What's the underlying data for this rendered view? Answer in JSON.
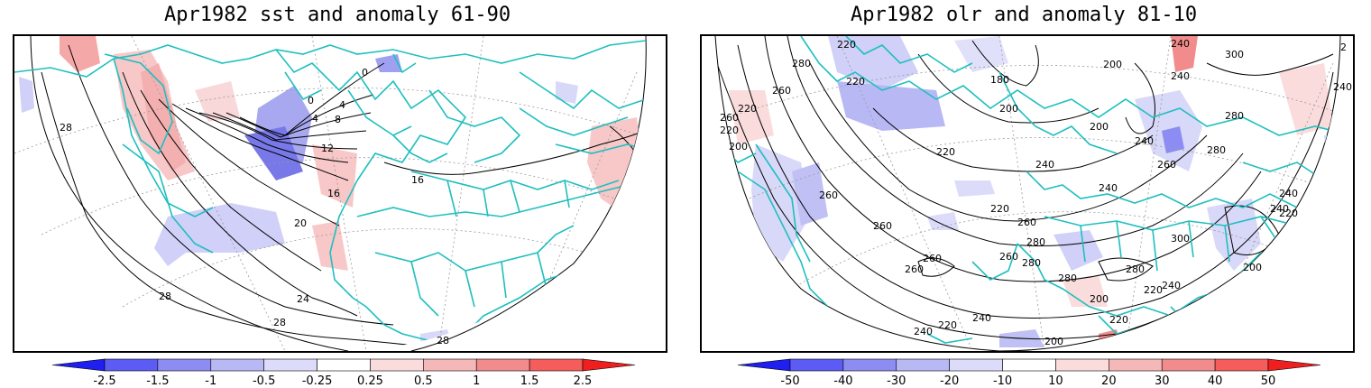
{
  "panels": [
    {
      "title": "Apr1982 sst and anomaly 61-90",
      "variable": "sst",
      "contour_labels": [
        "28",
        "0",
        "0",
        "4",
        "8",
        "4",
        "12",
        "16",
        "16",
        "20",
        "24",
        "28",
        "28",
        "28"
      ],
      "colorbar": {
        "ticks": [
          "-2.5",
          "-1.5",
          "-1",
          "-0.5",
          "-0.25",
          "0.25",
          "0.5",
          "1",
          "1.5",
          "2.5"
        ],
        "colors": [
          "#1f1ff0",
          "#5c5cf5",
          "#8c8cf2",
          "#b8b8f5",
          "#dcdcfa",
          "#ffffff",
          "#fadcdc",
          "#f5b8b8",
          "#f28c8c",
          "#f55c5c",
          "#f01f1f"
        ]
      }
    },
    {
      "title": "Apr1982 olr and anomaly 81-10",
      "variable": "olr",
      "contour_labels": [
        "280",
        "220",
        "240",
        "2",
        "260",
        "220",
        "200",
        "300",
        "180",
        "260",
        "220",
        "240",
        "280",
        "240",
        "200",
        "220",
        "200",
        "240",
        "280",
        "240",
        "200",
        "220",
        "260",
        "240",
        "260",
        "260",
        "220",
        "260",
        "280",
        "300",
        "240",
        "260",
        "260",
        "280",
        "280",
        "280",
        "260",
        "220",
        "200",
        "240",
        "220",
        "240",
        "200",
        "240",
        "220",
        "200",
        "220",
        "240"
      ],
      "colorbar": {
        "ticks": [
          "-50",
          "-40",
          "-30",
          "-20",
          "-10",
          "10",
          "20",
          "30",
          "40",
          "50"
        ],
        "colors": [
          "#1f1ff0",
          "#5c5cf5",
          "#8c8cf2",
          "#b8b8f5",
          "#dcdcfa",
          "#ffffff",
          "#fadcdc",
          "#f5b8b8",
          "#f28c8c",
          "#f55c5c",
          "#f01f1f"
        ]
      }
    }
  ],
  "colors": {
    "coastline": "#1fbfbf",
    "contour": "#000000",
    "graticule": "#9a9a9a",
    "neg_anom": "#c8c8f5",
    "pos_anom": "#f8c8c8"
  }
}
